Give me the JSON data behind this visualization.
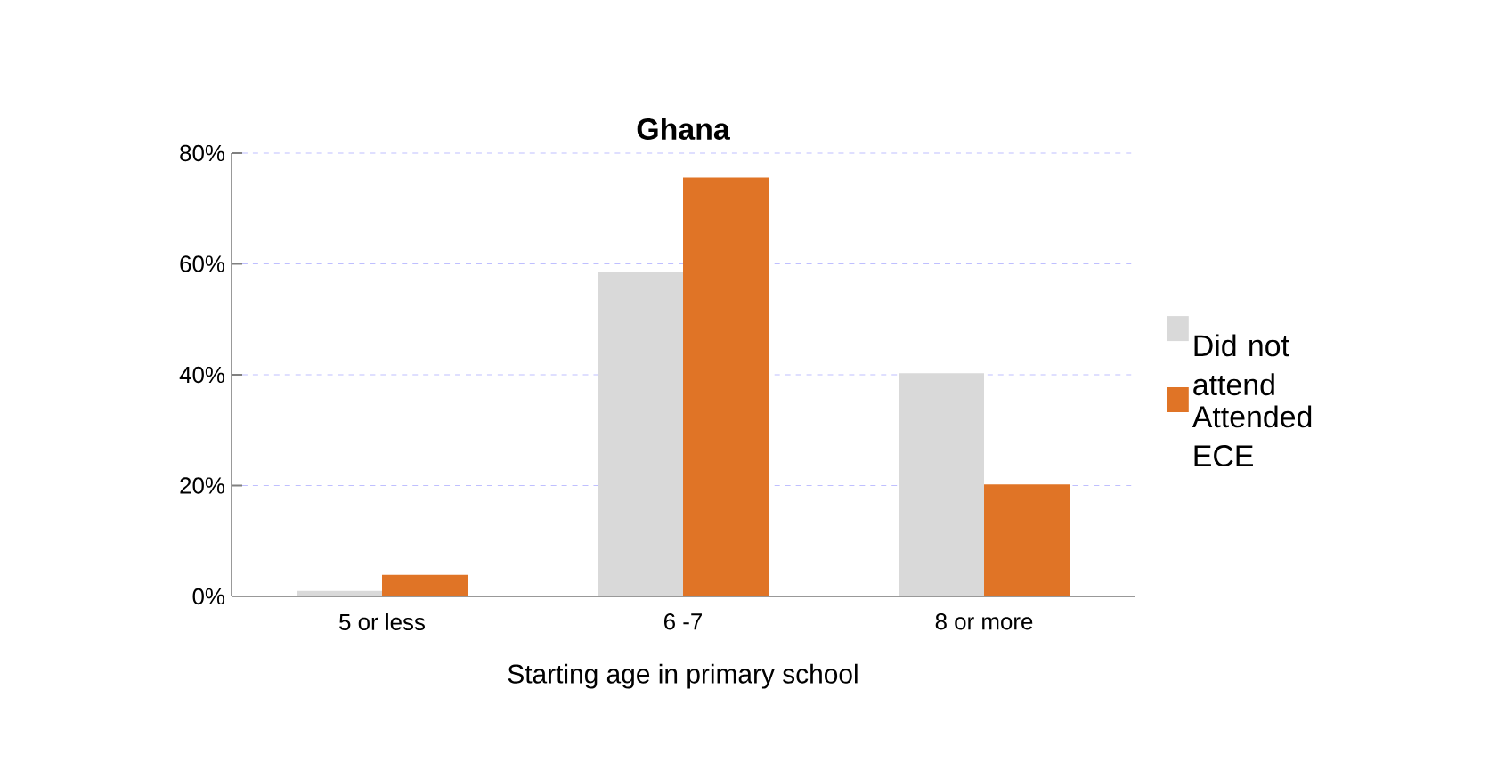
{
  "chart_data": {
    "type": "bar",
    "title": "Ghana",
    "xlabel": "Starting age in primary school",
    "categories": [
      "5 or less",
      "6 -7",
      "8 or more"
    ],
    "series": [
      {
        "name": "Did not attend",
        "color": "#d9d9d9",
        "values": [
          1,
          58.6,
          40.3
        ]
      },
      {
        "name": "Attended ECE",
        "color": "#e07426",
        "values": [
          3.9,
          75.6,
          20.2
        ]
      }
    ],
    "ylim": [
      0,
      80
    ],
    "yticks": [
      {
        "value": 0,
        "label": "0%"
      },
      {
        "value": 20,
        "label": "20%"
      },
      {
        "value": 40,
        "label": "40%"
      },
      {
        "value": 60,
        "label": "60%"
      },
      {
        "value": 80,
        "label": "80%"
      }
    ],
    "grid": "y",
    "legend": "right"
  }
}
